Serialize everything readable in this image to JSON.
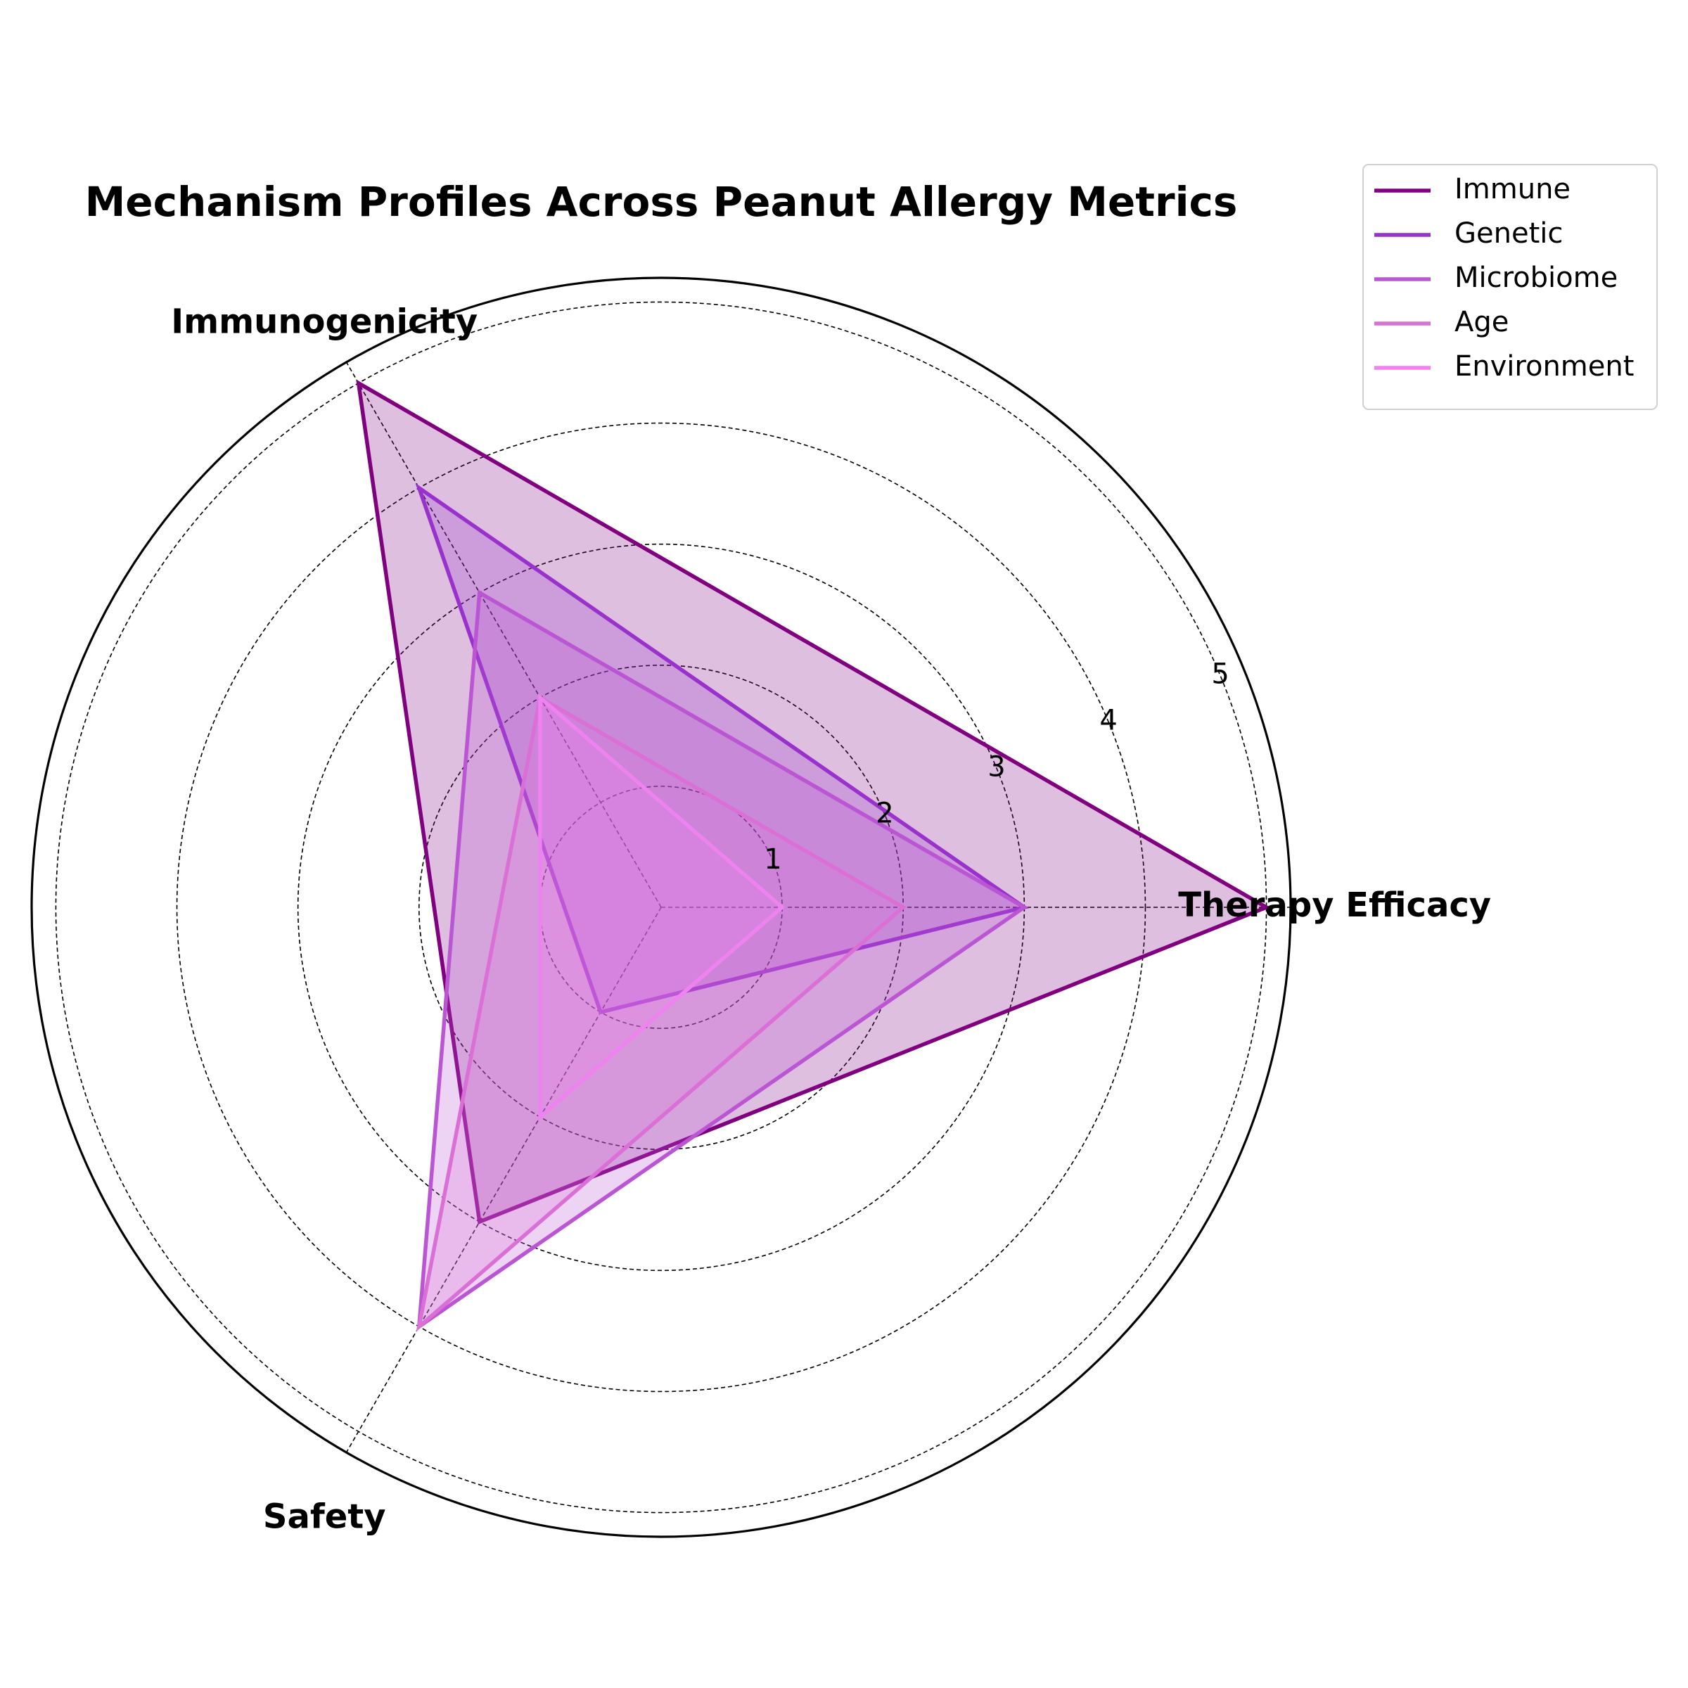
{
  "chart_data": {
    "type": "radar",
    "title": "Mechanism Profiles Across Peanut Allergy Metrics",
    "categories": [
      "Therapy Efficacy",
      "Immunogenicity",
      "Safety"
    ],
    "rlim": [
      0,
      5.2
    ],
    "rticks": [
      1,
      2,
      3,
      4,
      5
    ],
    "grid": true,
    "legend_position": "top-right",
    "series": [
      {
        "name": "Immune",
        "values": [
          5,
          5,
          3
        ],
        "color": "#800080"
      },
      {
        "name": "Genetic",
        "values": [
          3,
          4,
          1
        ],
        "color": "#9932CC"
      },
      {
        "name": "Microbiome",
        "values": [
          3,
          3,
          4
        ],
        "color": "#BA55D3"
      },
      {
        "name": "Age",
        "values": [
          2,
          2,
          4
        ],
        "color": "#DA70D6"
      },
      {
        "name": "Environment",
        "values": [
          1,
          2,
          2
        ],
        "color": "#EE82EE"
      }
    ]
  }
}
